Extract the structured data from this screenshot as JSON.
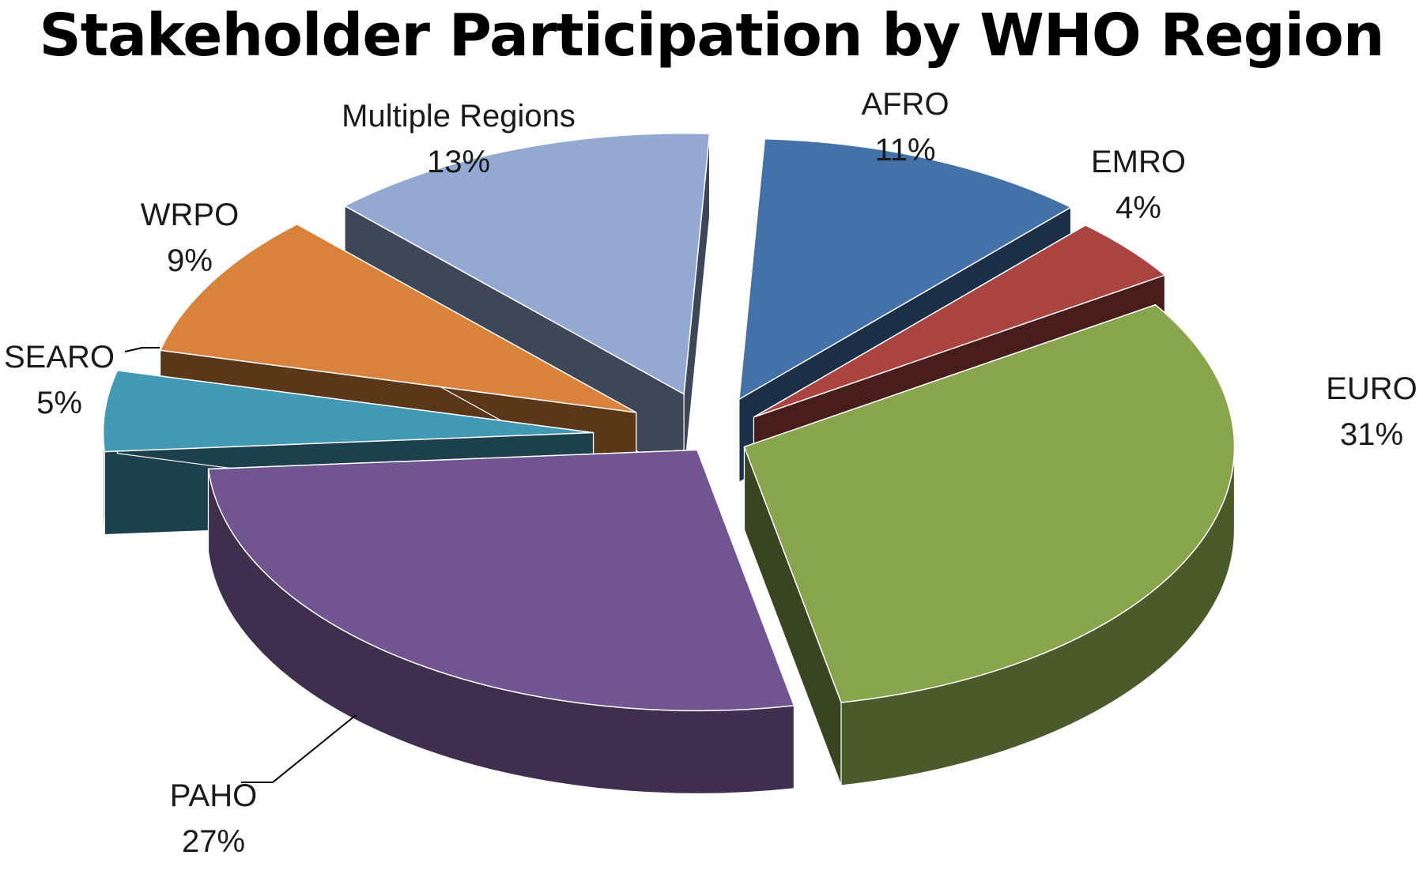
{
  "chart_data": {
    "type": "pie",
    "title": "Stakeholder Participation by WHO Region",
    "slices": [
      {
        "label": "AFRO",
        "value": 11,
        "value_label": "11%",
        "color": "#4471A8"
      },
      {
        "label": "EMRO",
        "value": 4,
        "value_label": "4%",
        "color": "#AA4440"
      },
      {
        "label": "EURO",
        "value": 31,
        "value_label": "31%",
        "color": "#88A44D"
      },
      {
        "label": "PAHO",
        "value": 27,
        "value_label": "27%",
        "color": "#705590"
      },
      {
        "label": "SEARO",
        "value": 5,
        "value_label": "5%",
        "color": "#4299B4"
      },
      {
        "label": "WRPO",
        "value": 9,
        "value_label": "9%",
        "color": "#D9823B"
      },
      {
        "label": "Multiple Regions",
        "value": 13,
        "value_label": "13%",
        "color": "#93A9D1"
      }
    ]
  }
}
